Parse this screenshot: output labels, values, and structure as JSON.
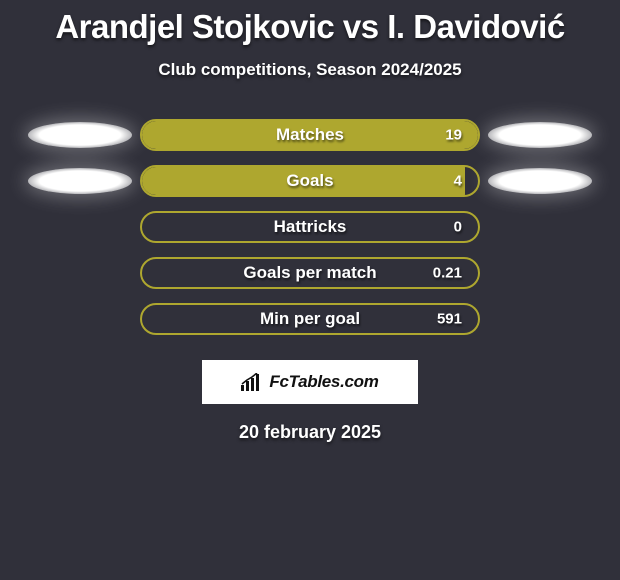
{
  "title": "Arandjel Stojkovic vs I. Davidović",
  "title_fontsize": 33,
  "subtitle": "Club competitions, Season 2024/2025",
  "subtitle_fontsize": 17,
  "date": "20 february 2025",
  "date_fontsize": 18,
  "background_color": "#30303a",
  "bar_border_color": "#aea72f",
  "bar_fill_color": "#aea72f",
  "bar_label_fontsize": 17,
  "bar_value_fontsize": 15,
  "halo_color": "#ffffff",
  "brand": {
    "text": "FcTables.com",
    "fontsize": 17
  },
  "stats": [
    {
      "label": "Matches",
      "value": "19",
      "fill_pct": 100,
      "halo_left": true,
      "halo_right": true
    },
    {
      "label": "Goals",
      "value": "4",
      "fill_pct": 96,
      "halo_left": true,
      "halo_right": true
    },
    {
      "label": "Hattricks",
      "value": "0",
      "fill_pct": 0,
      "halo_left": false,
      "halo_right": false
    },
    {
      "label": "Goals per match",
      "value": "0.21",
      "fill_pct": 0,
      "halo_left": false,
      "halo_right": false
    },
    {
      "label": "Min per goal",
      "value": "591",
      "fill_pct": 0,
      "halo_left": false,
      "halo_right": false
    }
  ]
}
